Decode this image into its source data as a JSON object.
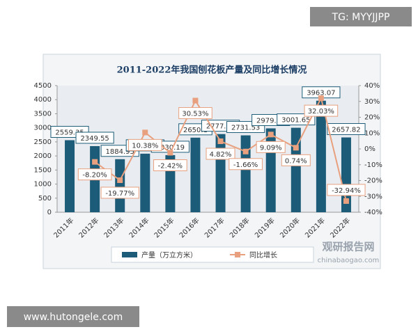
{
  "chart_data": {
    "type": "bar-line",
    "title": "2011-2022年我国刨花板产量及同比增长情况",
    "categories": [
      "2011年",
      "2012年",
      "2013年",
      "2014年",
      "2015年",
      "2016年",
      "2017年",
      "2018年",
      "2019年",
      "2020年",
      "2021年",
      "2022年"
    ],
    "series": [
      {
        "name": "产量（万立方米）",
        "type": "bar",
        "color": "#1d5c78",
        "values": [
          2559.35,
          2349.55,
          1884.95,
          2080.53,
          2030.19,
          2650.1,
          2777.77,
          2731.53,
          2979.73,
          3001.65,
          3963.07,
          2657.82
        ]
      },
      {
        "name": "同比增长",
        "type": "line",
        "axis": "y2",
        "color": "#e8a07e",
        "values": [
          null,
          -8.2,
          -19.77,
          10.38,
          -2.42,
          30.53,
          4.82,
          -1.66,
          9.09,
          0.74,
          32.03,
          -32.94
        ],
        "value_labels": [
          null,
          "-8.20%",
          "-19.77%",
          "10.38%",
          "-2.42%",
          "30.53%",
          "4.82%",
          "-1.66%",
          "9.09%",
          "0.74%",
          "32.03%",
          "-32.94%"
        ]
      }
    ],
    "ylim": [
      0,
      4500
    ],
    "yticks": [
      0,
      500,
      1000,
      1500,
      2000,
      2500,
      3000,
      3500,
      4000,
      4500
    ],
    "y2lim": [
      -40,
      40
    ],
    "y2ticks": [
      {
        "value": -40,
        "label": "-40%"
      },
      {
        "value": -30,
        "label": "-30%"
      },
      {
        "value": -20,
        "label": "-20%"
      },
      {
        "value": -10,
        "label": "-10%"
      },
      {
        "value": 0,
        "label": "0%"
      },
      {
        "value": 10,
        "label": "10%"
      },
      {
        "value": 20,
        "label": "20%"
      },
      {
        "value": 30,
        "label": "30%"
      },
      {
        "value": 40,
        "label": "40%"
      }
    ],
    "legend": "bottom"
  },
  "watermarks": {
    "top": "TG: MYYJJPP",
    "bottom": "www.hutongele.com",
    "brand": "观研报告网",
    "brand_url": "chinabaogao.com"
  }
}
